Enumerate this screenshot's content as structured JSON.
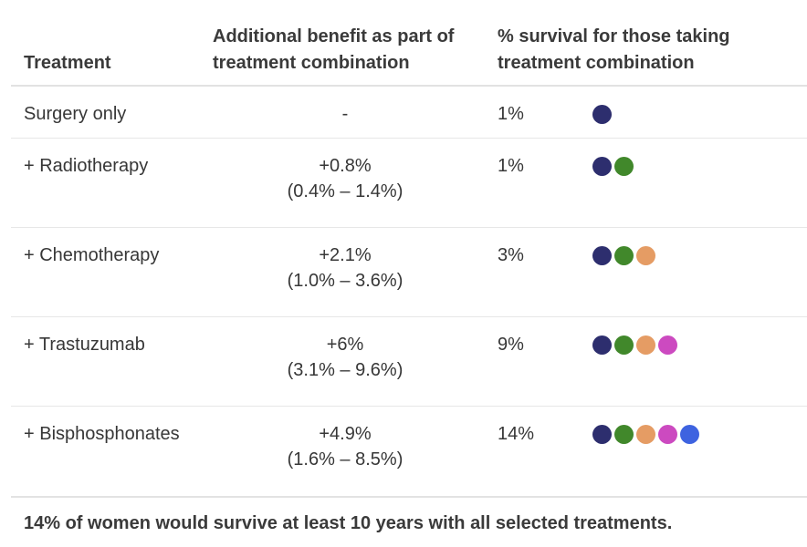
{
  "header": {
    "col_treatment": "Treatment",
    "col_benefit": "Additional benefit as part of treatment combination",
    "col_survival": "% survival for those taking treatment combination"
  },
  "rows": [
    {
      "treatment": "Surgery only",
      "benefit": "-",
      "benefit_ci": "",
      "survival": "1%",
      "dots": [
        "navy"
      ]
    },
    {
      "treatment": "+ Radiotherapy",
      "benefit": "+0.8%",
      "benefit_ci": "(0.4% – 1.4%)",
      "survival": "1%",
      "dots": [
        "navy",
        "green"
      ]
    },
    {
      "treatment": "+ Chemotherapy",
      "benefit": "+2.1%",
      "benefit_ci": "(1.0% – 3.6%)",
      "survival": "3%",
      "dots": [
        "navy",
        "green",
        "orange"
      ]
    },
    {
      "treatment": "+ Trastuzumab",
      "benefit": "+6%",
      "benefit_ci": "(3.1% – 9.6%)",
      "survival": "9%",
      "dots": [
        "navy",
        "green",
        "orange",
        "magenta"
      ]
    },
    {
      "treatment": "+ Bisphosphonates",
      "benefit": "+4.9%",
      "benefit_ci": "(1.6% – 8.5%)",
      "survival": "14%",
      "dots": [
        "navy",
        "green",
        "orange",
        "magenta",
        "blue"
      ]
    }
  ],
  "dot_colors": {
    "navy": "#2d2e6e",
    "green": "#41882b",
    "orange": "#e59c64",
    "magenta": "#cc4ac0",
    "blue": "#3e63e0"
  },
  "footer": {
    "summary": "14% of women would survive at least 10 years with all selected treatments."
  },
  "chart_data": {
    "type": "table",
    "columns": [
      "Treatment",
      "Additional benefit as part of treatment combination",
      "% survival for those taking treatment combination"
    ],
    "rows": [
      [
        "Surgery only",
        "-",
        "1%"
      ],
      [
        "+ Radiotherapy",
        "+0.8% (0.4% – 1.4%)",
        "1%"
      ],
      [
        "+ Chemotherapy",
        "+2.1% (1.0% – 3.6%)",
        "3%"
      ],
      [
        "+ Trastuzumab",
        "+6% (3.1% – 9.6%)",
        "9%"
      ],
      [
        "+ Bisphosphonates",
        "+4.9% (1.6% – 8.5%)",
        "14%"
      ]
    ],
    "dot_counts": [
      1,
      2,
      3,
      4,
      5
    ],
    "footnote": "14% of women would survive at least 10 years with all selected treatments."
  }
}
